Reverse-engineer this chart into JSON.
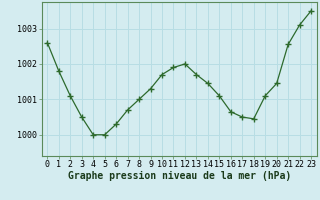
{
  "x": [
    0,
    1,
    2,
    3,
    4,
    5,
    6,
    7,
    8,
    9,
    10,
    11,
    12,
    13,
    14,
    15,
    16,
    17,
    18,
    19,
    20,
    21,
    22,
    23
  ],
  "y": [
    1002.6,
    1001.8,
    1001.1,
    1000.5,
    1000.0,
    1000.0,
    1000.3,
    1000.7,
    1001.0,
    1001.3,
    1001.7,
    1001.9,
    1002.0,
    1001.7,
    1001.45,
    1001.1,
    1000.65,
    1000.5,
    1000.45,
    1001.1,
    1001.45,
    1002.55,
    1003.1,
    1003.5
  ],
  "line_color": "#2d6a2d",
  "marker_color": "#2d6a2d",
  "bg_color": "#d4ecf0",
  "grid_color": "#b8dde4",
  "xlabel": "Graphe pression niveau de la mer (hPa)",
  "ylabel_ticks": [
    1000,
    1001,
    1002,
    1003
  ],
  "xlim": [
    -0.5,
    23.5
  ],
  "ylim": [
    999.4,
    1003.75
  ],
  "xlabel_fontsize": 7,
  "tick_fontsize": 6,
  "border_color": "#5a8a5a"
}
